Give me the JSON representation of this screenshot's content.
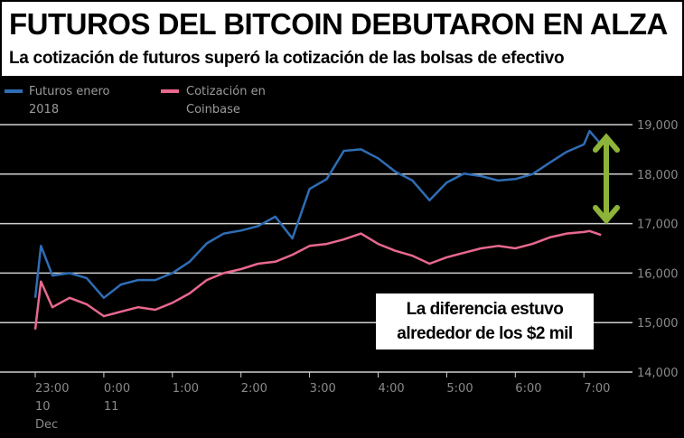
{
  "header": {
    "title": "FUTUROS DEL BITCOIN DEBUTARON EN ALZA",
    "subtitle": "La cotización de futuros superó la cotización de las bolsas de efectivo"
  },
  "annotation": {
    "line1": "La diferencia estuvo",
    "line2": "alrededor de los $2 mil",
    "arrow_color": "#8db33a"
  },
  "chart_data": {
    "type": "line",
    "title": "",
    "xlabel": "",
    "ylabel": "",
    "ylim": [
      14000,
      19000
    ],
    "grid": true,
    "legend_position": "top-left",
    "y_ticks": [
      "14,000",
      "15,000",
      "16,000",
      "17,000",
      "18,000",
      "19,000"
    ],
    "x_ticks": [
      {
        "label": "23:00",
        "sub1": "10",
        "sub2": "Dec"
      },
      {
        "label": "0:00",
        "sub1": "11",
        "sub2": ""
      },
      {
        "label": "1:00",
        "sub1": "",
        "sub2": ""
      },
      {
        "label": "2:00",
        "sub1": "",
        "sub2": ""
      },
      {
        "label": "3:00",
        "sub1": "",
        "sub2": ""
      },
      {
        "label": "4:00",
        "sub1": "",
        "sub2": ""
      },
      {
        "label": "5:00",
        "sub1": "",
        "sub2": ""
      },
      {
        "label": "6:00",
        "sub1": "",
        "sub2": ""
      },
      {
        "label": "7:00",
        "sub1": "",
        "sub2": ""
      }
    ],
    "x": [
      "23:00",
      "23:05",
      "23:15",
      "23:30",
      "23:45",
      "0:00",
      "0:15",
      "0:30",
      "0:45",
      "1:00",
      "1:15",
      "1:30",
      "1:45",
      "2:00",
      "2:15",
      "2:30",
      "2:45",
      "3:00",
      "3:15",
      "3:30",
      "3:45",
      "4:00",
      "4:15",
      "4:30",
      "4:45",
      "5:00",
      "5:15",
      "5:30",
      "5:45",
      "6:00",
      "6:15",
      "6:30",
      "6:45",
      "7:00",
      "7:05",
      "7:15"
    ],
    "series": [
      {
        "name_line1": "Futuros enero",
        "name_line2": "2018",
        "color": "#2f6db5",
        "values": [
          15500,
          16550,
          15950,
          16000,
          15900,
          15500,
          15770,
          15860,
          15860,
          16000,
          16230,
          16600,
          16800,
          16860,
          16950,
          17140,
          16700,
          17700,
          17900,
          18470,
          18500,
          18320,
          18050,
          17870,
          17470,
          17830,
          18010,
          17960,
          17870,
          17900,
          18000,
          18230,
          18450,
          18600,
          18870,
          18600
        ]
      },
      {
        "name_line1": "Cotización en",
        "name_line2": "Coinbase",
        "color": "#e8688e",
        "values": [
          14860,
          15830,
          15310,
          15500,
          15370,
          15130,
          15220,
          15310,
          15260,
          15400,
          15590,
          15860,
          16000,
          16080,
          16190,
          16230,
          16370,
          16550,
          16590,
          16680,
          16800,
          16590,
          16450,
          16350,
          16190,
          16320,
          16410,
          16500,
          16550,
          16500,
          16590,
          16720,
          16800,
          16830,
          16850,
          16770
        ]
      }
    ]
  }
}
